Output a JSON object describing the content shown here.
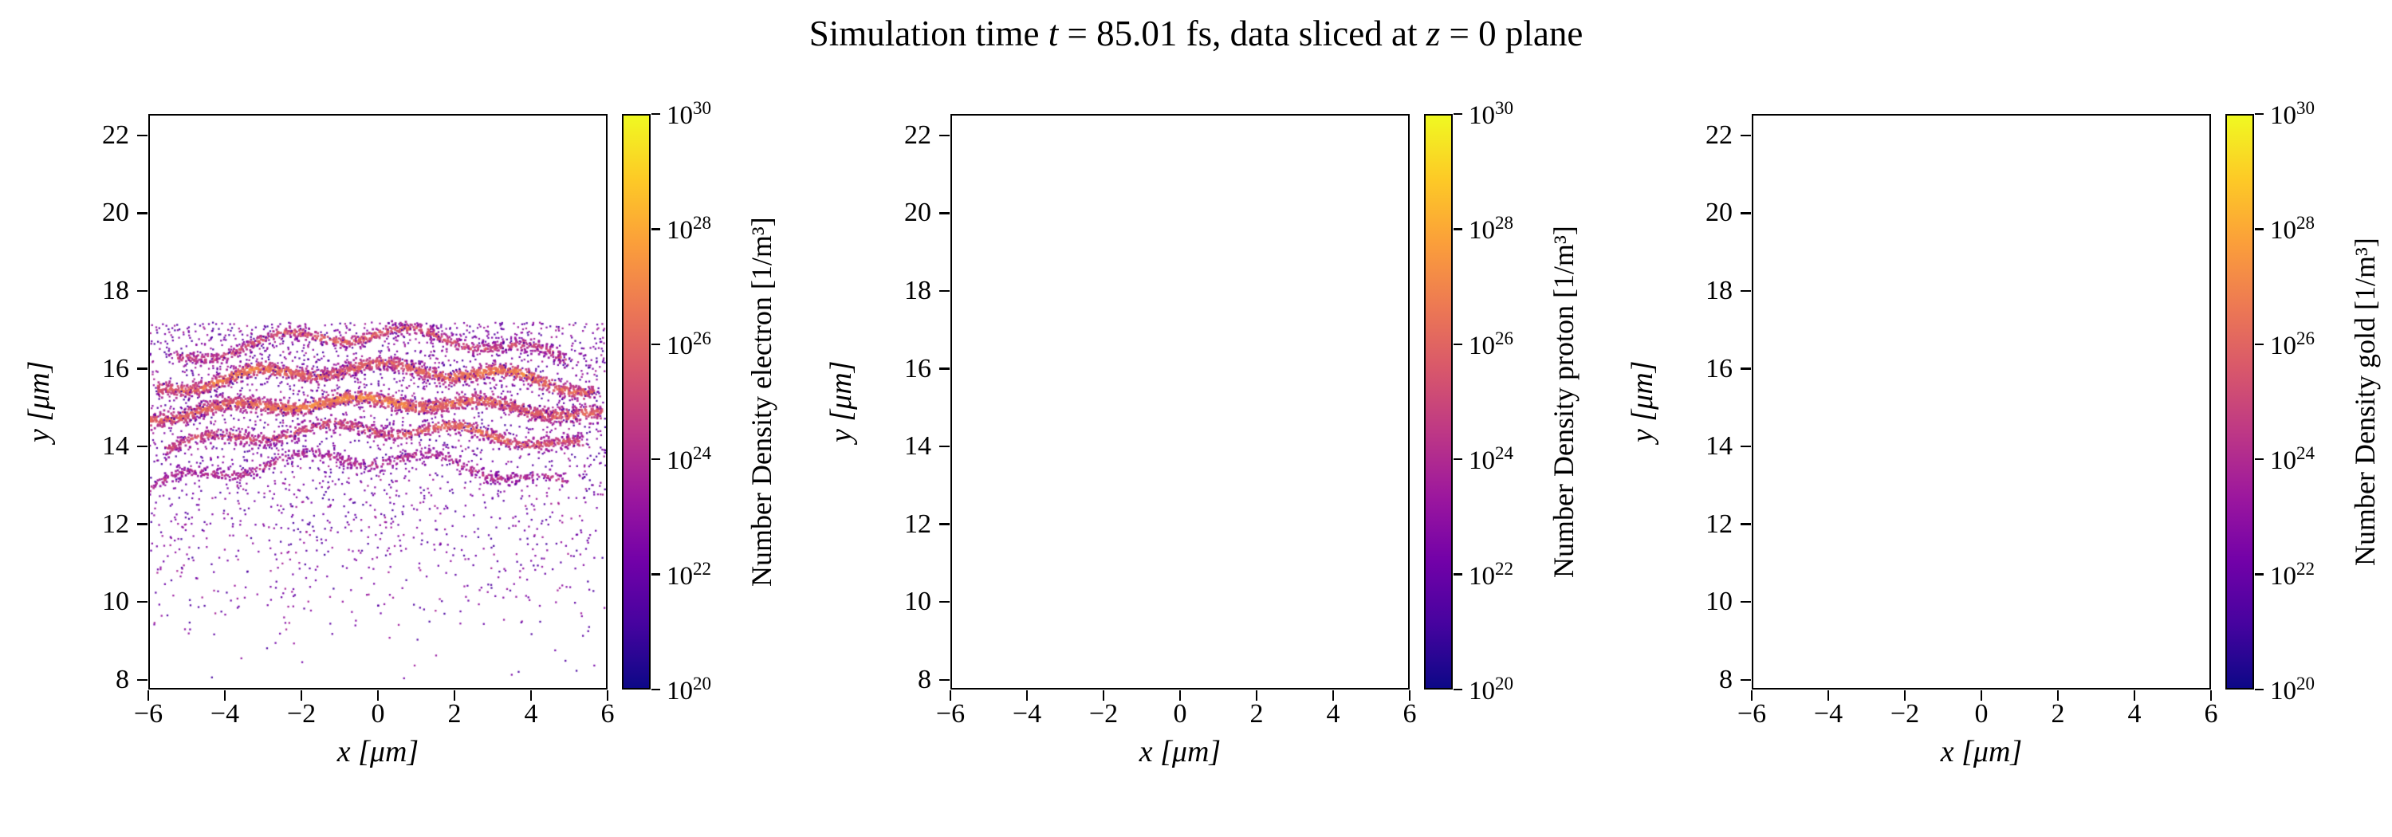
{
  "figure": {
    "title": "Simulation time t = 85.01 fs, data sliced at z = 0 plane",
    "title_segments": [
      {
        "text": "Simulation time ",
        "italic": false
      },
      {
        "text": "t",
        "italic": true
      },
      {
        "text": " = 85.01 fs, data sliced at ",
        "italic": false
      },
      {
        "text": "z",
        "italic": true
      },
      {
        "text": " = 0 plane",
        "italic": false
      }
    ],
    "background": "#ffffff",
    "axes_facecolor": "#ffffff",
    "spine_color": "#000000"
  },
  "colormap": {
    "name": "plasma",
    "stops": [
      "#0d0887",
      "#46039f",
      "#7201a8",
      "#9c179e",
      "#bd3786",
      "#d8576b",
      "#ed7953",
      "#fb9f3a",
      "#fdca26",
      "#f0f921"
    ]
  },
  "chart_data": [
    {
      "type": "scatter",
      "species": "electron",
      "xlabel": "x [μm]",
      "ylabel": "y [μm]",
      "xlim": [
        -6,
        6
      ],
      "ylim": [
        7.75,
        22.55
      ],
      "xticks": [
        -6,
        -4,
        -2,
        0,
        2,
        4,
        6
      ],
      "yticks": [
        8,
        10,
        12,
        14,
        16,
        18,
        20,
        22
      ],
      "grid": false,
      "colorbar": {
        "label": "Number Density electron [1/m³]",
        "scale": "log",
        "min_exponent": 20,
        "max_exponent": 30,
        "tick_exponents": [
          20,
          22,
          24,
          26,
          28,
          30
        ]
      },
      "content": "particle slice: layered arc-shaped density bands (log density ~10^23-10^27, plasma colormap) between y=13.5 and y=17, with sparse magenta halo of points down to y~8",
      "seed": 7,
      "bands": [
        {
          "y_center": 16.9,
          "x_range": [
            -5.3,
            5.0
          ],
          "edge_drop": 0.7,
          "thickness": 0.17,
          "wobble": 0.18,
          "points": 750,
          "log_density_range": [
            23.0,
            25.8
          ],
          "hot_spots": [
            [
              -0.5,
              2.0
            ]
          ]
        },
        {
          "y_center": 16.0,
          "x_range": [
            -5.8,
            5.7
          ],
          "edge_drop": 0.55,
          "thickness": 0.2,
          "wobble": 0.15,
          "points": 1300,
          "log_density_range": [
            23.5,
            26.8
          ],
          "hot_spots": [
            [
              -3.5,
              1.2
            ],
            [
              3.0,
              1.3
            ]
          ]
        },
        {
          "y_center": 15.15,
          "x_range": [
            -6.0,
            5.9
          ],
          "edge_drop": 0.4,
          "thickness": 0.2,
          "wobble": 0.12,
          "points": 1500,
          "log_density_range": [
            23.5,
            27.0
          ],
          "hot_spots": [
            [
              -0.5,
              2.2
            ]
          ]
        },
        {
          "y_center": 14.45,
          "x_range": [
            -5.6,
            5.4
          ],
          "edge_drop": 0.5,
          "thickness": 0.18,
          "wobble": 0.15,
          "points": 900,
          "log_density_range": [
            23.0,
            26.2
          ],
          "hot_spots": [
            [
              2.5,
              1.5
            ]
          ]
        },
        {
          "y_center": 13.7,
          "x_range": [
            -6.0,
            5.0
          ],
          "edge_drop": 0.8,
          "thickness": 0.16,
          "wobble": 0.18,
          "points": 550,
          "log_density_range": [
            22.5,
            25.0
          ],
          "hot_spots": []
        }
      ],
      "cloud": {
        "points": 2800,
        "x_range": [
          -6,
          6
        ],
        "y_top": 17.2,
        "y_bottom": 7.8,
        "top_bias": 2.4,
        "log_density_range": [
          21.0,
          23.8
        ]
      }
    },
    {
      "type": "scatter",
      "species": "proton",
      "xlabel": "x [μm]",
      "ylabel": "y [μm]",
      "xlim": [
        -6,
        6
      ],
      "ylim": [
        7.75,
        22.55
      ],
      "xticks": [
        -6,
        -4,
        -2,
        0,
        2,
        4,
        6
      ],
      "yticks": [
        8,
        10,
        12,
        14,
        16,
        18,
        20,
        22
      ],
      "grid": false,
      "colorbar": {
        "label": "Number Density proton [1/m³]",
        "scale": "log",
        "min_exponent": 20,
        "max_exponent": 30,
        "tick_exponents": [
          20,
          22,
          24,
          26,
          28,
          30
        ]
      },
      "content": "empty panel - no proton particles in slice",
      "seed": 8,
      "bands": [],
      "cloud": null
    },
    {
      "type": "scatter",
      "species": "gold",
      "xlabel": "x [μm]",
      "ylabel": "y [μm]",
      "xlim": [
        -6,
        6
      ],
      "ylim": [
        7.75,
        22.55
      ],
      "xticks": [
        -6,
        -4,
        -2,
        0,
        2,
        4,
        6
      ],
      "yticks": [
        8,
        10,
        12,
        14,
        16,
        18,
        20,
        22
      ],
      "grid": false,
      "colorbar": {
        "label": "Number Density gold [1/m³]",
        "scale": "log",
        "min_exponent": 20,
        "max_exponent": 30,
        "tick_exponents": [
          20,
          22,
          24,
          26,
          28,
          30
        ]
      },
      "content": "empty panel - no gold particles in slice",
      "seed": 9,
      "bands": [],
      "cloud": null
    }
  ]
}
